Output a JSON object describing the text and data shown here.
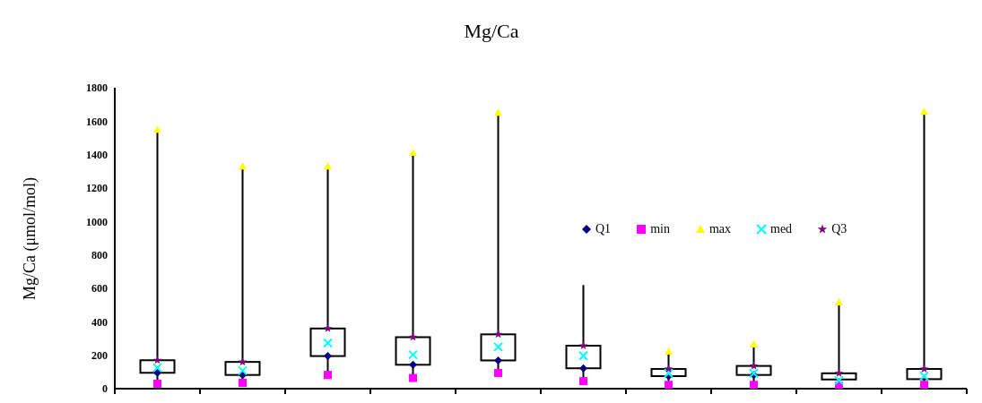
{
  "chart_data": {
    "type": "box",
    "title": "Mg/Ca",
    "ylabel": "Mg/Ca (μmol/mol)",
    "categories": [
      null,
      null,
      null,
      null,
      null,
      null,
      null,
      null,
      null,
      null
    ],
    "boxes": [
      {
        "low": 30,
        "q1": 95,
        "q3": 170,
        "high": 1550
      },
      {
        "low": 35,
        "q1": 82,
        "q3": 160,
        "high": 1330
      },
      {
        "low": 82,
        "q1": 195,
        "q3": 360,
        "high": 1330
      },
      {
        "low": 64,
        "q1": 143,
        "q3": 308,
        "high": 1412
      },
      {
        "low": 94,
        "q1": 169,
        "q3": 325,
        "high": 1652
      },
      {
        "low": 45,
        "q1": 122,
        "q3": 257,
        "high": 620
      },
      {
        "low": 23,
        "q1": 75,
        "q3": 118,
        "high": 223
      },
      {
        "low": 23,
        "q1": 82,
        "q3": 136,
        "high": 266
      },
      {
        "low": 17,
        "q1": 55,
        "q3": 92,
        "high": 518
      },
      {
        "low": 23,
        "q1": 57,
        "q3": 118,
        "high": 1657
      }
    ],
    "series": [
      {
        "name": "Q1",
        "type": "scatter",
        "color": "#000080",
        "marker": "diamond",
        "values": [
          95,
          82,
          195,
          143,
          169,
          122,
          75,
          82,
          null,
          null
        ]
      },
      {
        "name": "min",
        "type": "scatter",
        "color": "#ff00ff",
        "marker": "square",
        "values": [
          30,
          35,
          82,
          64,
          94,
          45,
          23,
          23,
          17,
          23
        ]
      },
      {
        "name": "max",
        "type": "scatter",
        "color": "#ffff00",
        "marker": "triangle",
        "values": [
          1550,
          1330,
          1330,
          1412,
          1652,
          null,
          223,
          266,
          518,
          1657
        ]
      },
      {
        "name": "med",
        "type": "scatter",
        "color": "#00ffff",
        "marker": "cross",
        "values": [
          125,
          108,
          273,
          203,
          250,
          197,
          92,
          92,
          49,
          75
        ]
      },
      {
        "name": "Q3",
        "type": "scatter",
        "color": "#800080",
        "marker": "star",
        "values": [
          170,
          160,
          360,
          308,
          325,
          257,
          118,
          136,
          92,
          118
        ]
      }
    ],
    "ylim": [
      0,
      1800
    ],
    "yticks": [
      0,
      200,
      400,
      600,
      800,
      1000,
      1200,
      1400,
      1600,
      1800
    ],
    "legend": "right",
    "tick_labels": "y"
  }
}
